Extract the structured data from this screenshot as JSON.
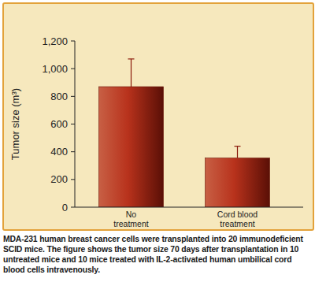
{
  "chart_data": {
    "type": "bar",
    "y_label": "Tumor size (m³)",
    "categories": [
      "No treatment",
      "Cord blood treatment"
    ],
    "values": [
      870,
      355
    ],
    "errors": [
      200,
      85
    ],
    "color": "#b8321c",
    "ylim": [
      0,
      1200
    ],
    "yticks": [
      0,
      200,
      400,
      600,
      800,
      {
        "value": 1000,
        "label": "1,000"
      },
      {
        "value": 1200,
        "label": "1,200"
      }
    ],
    "grid": false,
    "caption": "MDA-231 human breast cancer cells were transplanted into 20 immunodeficient SCID mice. The figure shows the tumor size 70 days after transplantation in 10 untreated mice and 10 mice treated with IL-2-activated human umbilical cord blood cells intravenously."
  }
}
